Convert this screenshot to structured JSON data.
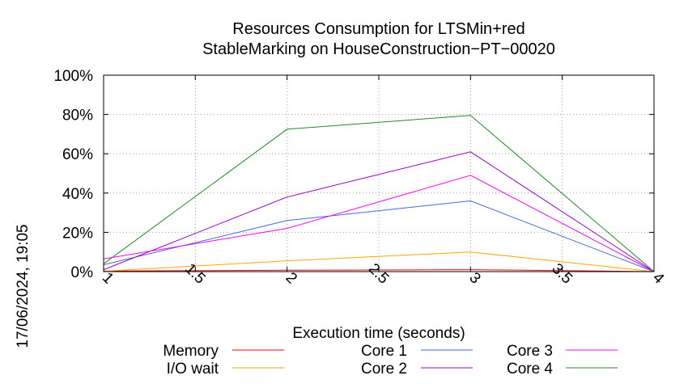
{
  "chart_data": {
    "type": "line",
    "title": [
      "Resources Consumption for LTSMin+red",
      "StableMarking on HouseConstruction−PT−00020"
    ],
    "xlabel": "Execution time (seconds)",
    "ylabel": "",
    "timestamp": "17/06/2024, 19:05",
    "xlim": [
      1,
      4
    ],
    "ylim": [
      0,
      100
    ],
    "x_ticks": [
      1,
      1.5,
      2,
      2.5,
      3,
      3.5,
      4
    ],
    "x_tick_labels": [
      "1",
      "1.5",
      "2",
      "2.5",
      "3",
      "3.5",
      "4"
    ],
    "y_ticks": [
      0,
      20,
      40,
      60,
      80,
      100
    ],
    "y_tick_labels": [
      "0%",
      "20%",
      "40%",
      "60%",
      "80%",
      "100%"
    ],
    "grid": true,
    "legend_position": "bottom",
    "series": [
      {
        "name": "Memory",
        "color": "#ff0000",
        "x": [
          1,
          2,
          3,
          4
        ],
        "values": [
          0.3,
          0.7,
          1.0,
          0
        ]
      },
      {
        "name": "I/O wait",
        "color": "#ffa500",
        "x": [
          1,
          2,
          3,
          4
        ],
        "values": [
          0.2,
          5.5,
          10,
          0
        ]
      },
      {
        "name": "Core 1",
        "color": "#4169e1",
        "x": [
          1,
          2,
          3,
          4
        ],
        "values": [
          3.5,
          26,
          36,
          0
        ]
      },
      {
        "name": "Core 2",
        "color": "#9400d3",
        "x": [
          1,
          2,
          3,
          4
        ],
        "values": [
          1.0,
          38,
          61,
          0
        ]
      },
      {
        "name": "Core 3",
        "color": "#ff00ff",
        "x": [
          1,
          2,
          3,
          4
        ],
        "values": [
          6.5,
          22,
          49,
          0
        ]
      },
      {
        "name": "Core 4",
        "color": "#228b22",
        "x": [
          1,
          2,
          3,
          4
        ],
        "values": [
          4.0,
          72.5,
          79.5,
          0
        ]
      }
    ]
  }
}
